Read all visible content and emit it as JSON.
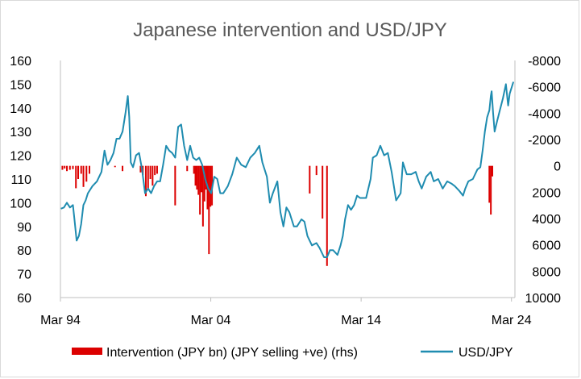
{
  "chart_data": {
    "type": "line",
    "title": "Japanese intervention and USD/JPY",
    "xlabel": "",
    "ylabel": "",
    "x_ticks": [
      "Mar 94",
      "Mar 04",
      "Mar 14",
      "Mar 24"
    ],
    "x_range": [
      1994.17,
      2024.4
    ],
    "y_left": {
      "ticks": [
        160,
        150,
        140,
        130,
        120,
        110,
        100,
        90,
        80,
        70,
        60
      ],
      "range": [
        60,
        160
      ]
    },
    "y_right": {
      "ticks": [
        -8000,
        -6000,
        -4000,
        -2000,
        0,
        2000,
        4000,
        6000,
        8000,
        10000
      ],
      "range": [
        -8000,
        10000
      ],
      "reversed": true
    },
    "grid": false,
    "legend_position": "bottom",
    "colors": {
      "usdjpy": "#1f8cb0",
      "intervention": "#dc0000",
      "axis": "#bfbfbf",
      "title": "#595959"
    },
    "series": [
      {
        "name": "Intervention (JPY bn) (JPY selling +ve) (rhs)",
        "axis": "right",
        "kind": "bar",
        "points": [
          [
            1994.3,
            300
          ],
          [
            1994.45,
            200
          ],
          [
            1994.6,
            400
          ],
          [
            1994.8,
            300
          ],
          [
            1995.0,
            250
          ],
          [
            1995.2,
            1700
          ],
          [
            1995.35,
            1000
          ],
          [
            1995.55,
            600
          ],
          [
            1995.7,
            1600
          ],
          [
            1995.9,
            1200
          ],
          [
            1996.1,
            600
          ],
          [
            1997.8,
            100
          ],
          [
            1998.3,
            400
          ],
          [
            1999.5,
            500
          ],
          [
            1999.65,
            700
          ],
          [
            1999.85,
            2300
          ],
          [
            2000.0,
            1800
          ],
          [
            2000.15,
            1000
          ],
          [
            2000.3,
            1500
          ],
          [
            2000.45,
            700
          ],
          [
            2000.6,
            600
          ],
          [
            2001.8,
            3000
          ],
          [
            2002.6,
            400
          ],
          [
            2003.05,
            600
          ],
          [
            2003.15,
            1500
          ],
          [
            2003.25,
            1800
          ],
          [
            2003.35,
            2200
          ],
          [
            2003.45,
            3700
          ],
          [
            2003.55,
            2000
          ],
          [
            2003.65,
            4600
          ],
          [
            2003.75,
            2700
          ],
          [
            2003.85,
            1800
          ],
          [
            2003.95,
            3300
          ],
          [
            2004.05,
            6700
          ],
          [
            2004.15,
            3100
          ],
          [
            2004.25,
            3000
          ],
          [
            2010.75,
            2100
          ],
          [
            2011.2,
            700
          ],
          [
            2011.6,
            4000
          ],
          [
            2011.9,
            7600
          ],
          [
            2022.7,
            2800
          ],
          [
            2022.8,
            3700
          ],
          [
            2022.9,
            800
          ]
        ]
      },
      {
        "name": "USD/JPY",
        "axis": "left",
        "kind": "line",
        "points": [
          [
            1994.2,
            97.5
          ],
          [
            1994.4,
            98
          ],
          [
            1994.6,
            100
          ],
          [
            1994.8,
            98
          ],
          [
            1995.0,
            99
          ],
          [
            1995.1,
            93
          ],
          [
            1995.25,
            84
          ],
          [
            1995.4,
            86
          ],
          [
            1995.55,
            91
          ],
          [
            1995.7,
            99
          ],
          [
            1995.85,
            101
          ],
          [
            1996.0,
            104
          ],
          [
            1996.3,
            107
          ],
          [
            1996.6,
            109
          ],
          [
            1996.9,
            113
          ],
          [
            1997.1,
            122
          ],
          [
            1997.3,
            116
          ],
          [
            1997.5,
            118
          ],
          [
            1997.7,
            121
          ],
          [
            1997.9,
            127
          ],
          [
            1998.1,
            127
          ],
          [
            1998.3,
            130
          ],
          [
            1998.5,
            138
          ],
          [
            1998.65,
            145
          ],
          [
            1998.75,
            136
          ],
          [
            1998.85,
            117
          ],
          [
            1999.0,
            115
          ],
          [
            1999.2,
            120
          ],
          [
            1999.4,
            121
          ],
          [
            1999.6,
            114
          ],
          [
            1999.8,
            104
          ],
          [
            2000.0,
            106
          ],
          [
            2000.2,
            104
          ],
          [
            2000.4,
            107
          ],
          [
            2000.6,
            109
          ],
          [
            2000.8,
            109
          ],
          [
            2001.0,
            116
          ],
          [
            2001.2,
            124
          ],
          [
            2001.4,
            122
          ],
          [
            2001.6,
            121
          ],
          [
            2001.8,
            119
          ],
          [
            2002.0,
            132
          ],
          [
            2002.2,
            133
          ],
          [
            2002.4,
            124
          ],
          [
            2002.6,
            118
          ],
          [
            2002.8,
            124
          ],
          [
            2003.0,
            119
          ],
          [
            2003.2,
            118
          ],
          [
            2003.4,
            119
          ],
          [
            2003.6,
            116
          ],
          [
            2003.8,
            110
          ],
          [
            2004.0,
            106
          ],
          [
            2004.2,
            104
          ],
          [
            2004.4,
            111
          ],
          [
            2004.6,
            110
          ],
          [
            2004.8,
            104
          ],
          [
            2005.0,
            104
          ],
          [
            2005.3,
            107
          ],
          [
            2005.6,
            112
          ],
          [
            2005.9,
            119
          ],
          [
            2006.2,
            116
          ],
          [
            2006.5,
            115
          ],
          [
            2006.8,
            119
          ],
          [
            2007.1,
            121
          ],
          [
            2007.4,
            124
          ],
          [
            2007.6,
            117
          ],
          [
            2007.9,
            111
          ],
          [
            2008.1,
            100
          ],
          [
            2008.3,
            104
          ],
          [
            2008.6,
            109
          ],
          [
            2008.8,
            96
          ],
          [
            2009.0,
            90
          ],
          [
            2009.2,
            98
          ],
          [
            2009.4,
            96
          ],
          [
            2009.7,
            90
          ],
          [
            2009.9,
            90
          ],
          [
            2010.2,
            93
          ],
          [
            2010.4,
            92
          ],
          [
            2010.6,
            86
          ],
          [
            2010.9,
            82
          ],
          [
            2011.2,
            83
          ],
          [
            2011.4,
            81
          ],
          [
            2011.7,
            77
          ],
          [
            2011.9,
            77
          ],
          [
            2012.1,
            80
          ],
          [
            2012.3,
            80
          ],
          [
            2012.6,
            78
          ],
          [
            2012.8,
            82
          ],
          [
            2012.95,
            86
          ],
          [
            2013.1,
            93
          ],
          [
            2013.3,
            99
          ],
          [
            2013.5,
            97
          ],
          [
            2013.7,
            99
          ],
          [
            2013.9,
            103
          ],
          [
            2014.1,
            102
          ],
          [
            2014.5,
            102
          ],
          [
            2014.8,
            110
          ],
          [
            2014.95,
            119
          ],
          [
            2015.2,
            120
          ],
          [
            2015.45,
            124
          ],
          [
            2015.7,
            120
          ],
          [
            2015.95,
            121
          ],
          [
            2016.2,
            113
          ],
          [
            2016.5,
            101
          ],
          [
            2016.8,
            104
          ],
          [
            2016.95,
            117
          ],
          [
            2017.2,
            112
          ],
          [
            2017.5,
            112
          ],
          [
            2017.8,
            113
          ],
          [
            2018.0,
            109
          ],
          [
            2018.2,
            106
          ],
          [
            2018.5,
            111
          ],
          [
            2018.8,
            113
          ],
          [
            2019.0,
            109
          ],
          [
            2019.3,
            110
          ],
          [
            2019.6,
            106
          ],
          [
            2019.9,
            109
          ],
          [
            2020.2,
            108
          ],
          [
            2020.4,
            107
          ],
          [
            2020.7,
            105
          ],
          [
            2020.95,
            103
          ],
          [
            2021.1,
            106
          ],
          [
            2021.3,
            109
          ],
          [
            2021.6,
            110
          ],
          [
            2021.9,
            114
          ],
          [
            2022.1,
            115
          ],
          [
            2022.25,
            122
          ],
          [
            2022.4,
            130
          ],
          [
            2022.55,
            136
          ],
          [
            2022.7,
            139
          ],
          [
            2022.8,
            145
          ],
          [
            2022.85,
            147
          ],
          [
            2022.95,
            138
          ],
          [
            2023.05,
            130
          ],
          [
            2023.2,
            134
          ],
          [
            2023.4,
            139
          ],
          [
            2023.6,
            144
          ],
          [
            2023.8,
            150
          ],
          [
            2023.95,
            141
          ],
          [
            2024.05,
            146
          ],
          [
            2024.2,
            149
          ],
          [
            2024.3,
            151
          ]
        ]
      }
    ]
  }
}
